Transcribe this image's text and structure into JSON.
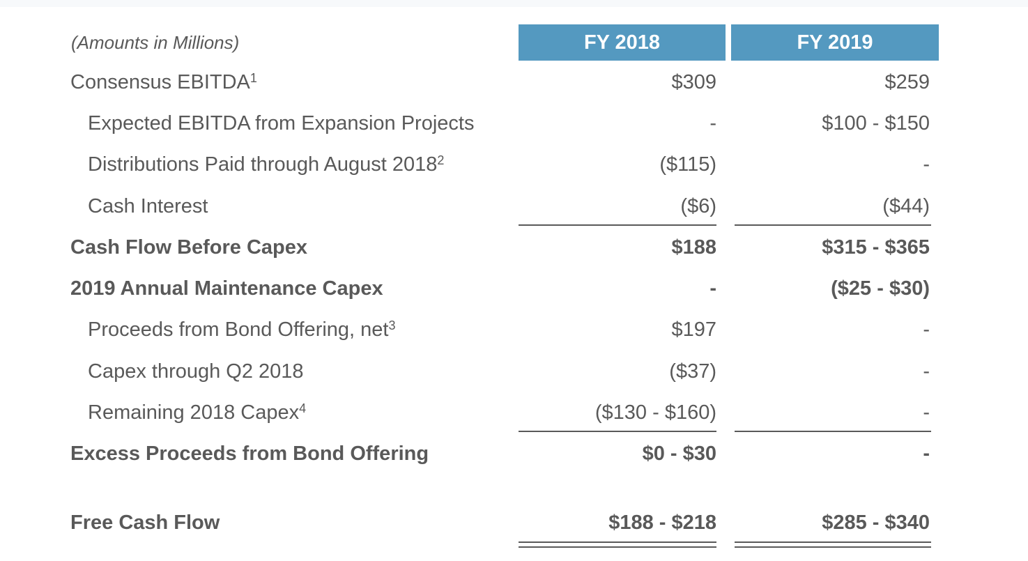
{
  "table": {
    "units_label": "(Amounts in Millions)",
    "columns": [
      "FY 2018",
      "FY 2019"
    ],
    "rows": [
      {
        "label": "Consensus EBITDA",
        "footnote": "1",
        "fy2018": "$309",
        "fy2019": "$259"
      },
      {
        "label": "Expected EBITDA from Expansion Projects",
        "footnote": "",
        "fy2018": "-",
        "fy2019": "$100 - $150"
      },
      {
        "label": "Distributions Paid through August 2018",
        "footnote": "2",
        "fy2018": "($115)",
        "fy2019": "-"
      },
      {
        "label": "Cash Interest",
        "footnote": "",
        "fy2018": "($6)",
        "fy2019": "($44)"
      },
      {
        "label": "Cash Flow Before Capex",
        "footnote": "",
        "fy2018": "$188",
        "fy2019": "$315 - $365"
      },
      {
        "label": "2019 Annual Maintenance Capex",
        "footnote": "",
        "fy2018": "-",
        "fy2019": "($25 - $30)"
      },
      {
        "label": "Proceeds from Bond Offering, net",
        "footnote": "3",
        "fy2018": "$197",
        "fy2019": "-"
      },
      {
        "label": "Capex through Q2 2018",
        "footnote": "",
        "fy2018": "($37)",
        "fy2019": "-"
      },
      {
        "label": "Remaining 2018 Capex",
        "footnote": "4",
        "fy2018": "($130 - $160)",
        "fy2019": "-"
      },
      {
        "label": "Excess Proceeds from Bond Offering",
        "footnote": "",
        "fy2018": "$0 - $30",
        "fy2019": "-"
      },
      {
        "label": "Free Cash Flow",
        "footnote": "",
        "fy2018": "$188 - $218",
        "fy2019": "$285 - $340"
      }
    ]
  },
  "colors": {
    "header_bg": "#5499c0",
    "header_text": "#ffffff",
    "body_text": "#595959"
  }
}
